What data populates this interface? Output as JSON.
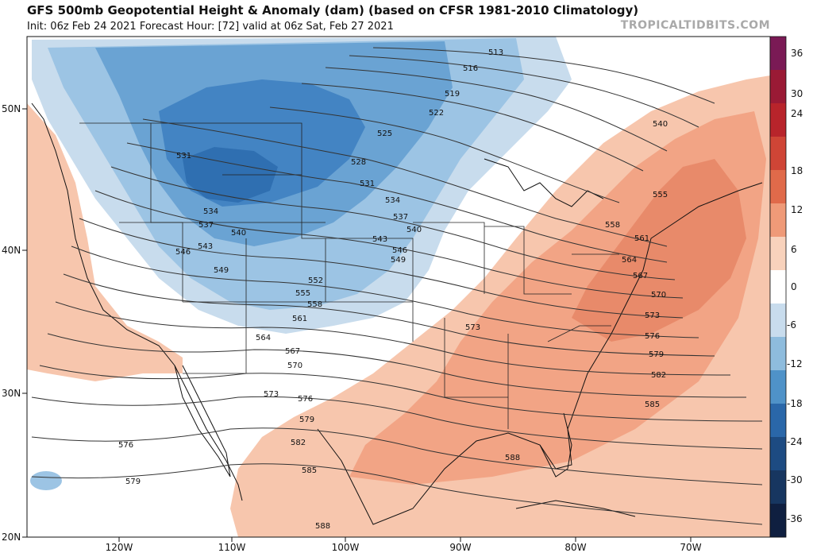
{
  "header": {
    "title": "GFS 500mb Geopotential Height & Anomaly (dam) (based on CFSR 1981-2010 Climatology)",
    "subtitle": "Init: 06z Feb 24 2021   Forecast Hour: [72]   valid at 06z Sat, Feb 27 2021",
    "watermark": "TROPICALTIDBITS.COM"
  },
  "axes": {
    "latitudes": [
      "50N",
      "40N",
      "30N",
      "20N"
    ],
    "longitudes": [
      "120W",
      "110W",
      "100W",
      "90W",
      "80W",
      "70W"
    ]
  },
  "colorbar": {
    "labels": [
      "36",
      "30",
      "24",
      "18",
      "12",
      "6",
      "0",
      "-6",
      "-12",
      "-18",
      "-24",
      "-30",
      "-36"
    ],
    "colors": [
      "#7a1a55",
      "#9a1a35",
      "#b8242b",
      "#cf4536",
      "#e06a4a",
      "#ef9a78",
      "#f8d2bc",
      "#ffffff",
      "#c8dced",
      "#8ebcdd",
      "#4f92c8",
      "#2a67a9",
      "#1d4b82",
      "#173660",
      "#0f1f40"
    ]
  },
  "map": {
    "colors": {
      "negative_light": "#9cc4e4",
      "negative_mid": "#6aa3d3",
      "negative_strong": "#4384c3",
      "negative_core": "#2f6fb1",
      "positive_light": "#f7c6ad",
      "positive_mid": "#f2a485",
      "positive_strong": "#e88a6a"
    },
    "contour_labels": [
      "513",
      "516",
      "519",
      "522",
      "525",
      "528",
      "531",
      "531",
      "534",
      "534",
      "537",
      "537",
      "540",
      "540",
      "540",
      "543",
      "543",
      "546",
      "546",
      "549",
      "549",
      "552",
      "555",
      "555",
      "558",
      "558",
      "561",
      "561",
      "564",
      "564",
      "567",
      "567",
      "570",
      "570",
      "573",
      "573",
      "573",
      "576",
      "576",
      "576",
      "579",
      "579",
      "579",
      "582",
      "582",
      "585",
      "585",
      "588",
      "588"
    ]
  }
}
